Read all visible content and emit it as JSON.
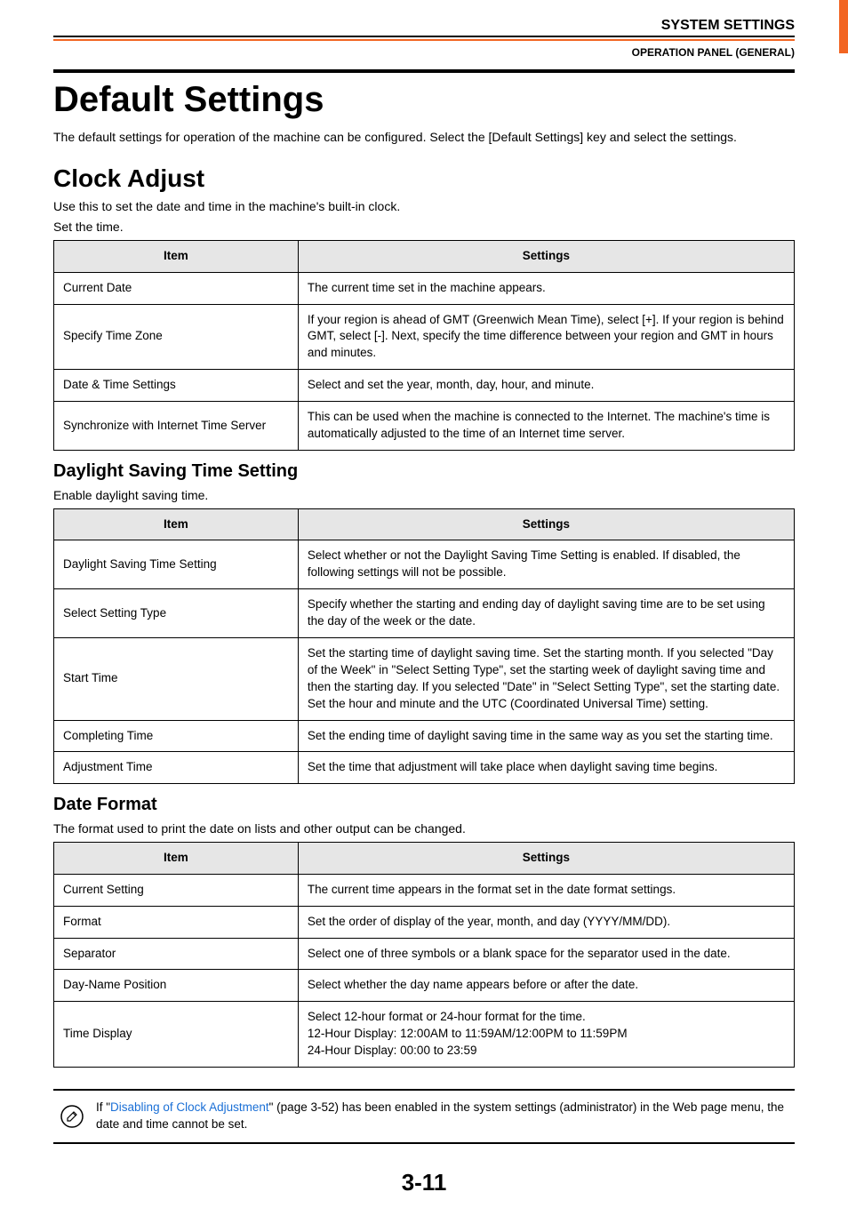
{
  "header": {
    "chapter": "SYSTEM SETTINGS",
    "subsection": "OPERATION PANEL (GENERAL)"
  },
  "title": "Default Settings",
  "intro": "The default settings for operation of the machine can be configured. Select the [Default Settings] key and select the settings.",
  "section1": {
    "heading": "Clock Adjust",
    "desc1": "Use this to set the date and time in the machine's built-in clock.",
    "desc2": "Set the time.",
    "th_item": "Item",
    "th_settings": "Settings",
    "rows": [
      {
        "item": "Current Date",
        "settings": "The current time set in the machine appears."
      },
      {
        "item": "Specify Time Zone",
        "settings": "If your region is ahead of GMT (Greenwich Mean Time), select [+]. If your region is behind GMT, select [-]. Next, specify the time difference between your region and GMT in hours and minutes."
      },
      {
        "item": "Date & Time Settings",
        "settings": "Select and set the year, month, day, hour, and minute."
      },
      {
        "item": "Synchronize with Internet Time Server",
        "settings": "This can be used when the machine is connected to the Internet. The machine's time is automatically adjusted to the time of an Internet time server."
      }
    ]
  },
  "section2": {
    "heading": "Daylight Saving Time Setting",
    "desc": "Enable daylight saving time.",
    "th_item": "Item",
    "th_settings": "Settings",
    "rows": [
      {
        "item": "Daylight Saving Time Setting",
        "settings": "Select whether or not the Daylight Saving Time Setting is enabled. If disabled, the following settings will not be possible."
      },
      {
        "item": "Select Setting Type",
        "settings": "Specify whether the starting and ending day of daylight saving time are to be set using the day of the week or the date."
      },
      {
        "item": "Start Time",
        "settings": "Set the starting time of daylight saving time. Set the starting month. If you selected \"Day of the Week\" in \"Select Setting Type\", set the starting week of daylight saving time and then the starting day. If you selected \"Date\" in \"Select Setting Type\", set the starting date. Set the hour and minute and the UTC (Coordinated Universal Time) setting."
      },
      {
        "item": "Completing Time",
        "settings": "Set the ending time of daylight saving time in the same way as you set the starting time."
      },
      {
        "item": "Adjustment Time",
        "settings": "Set the time that adjustment will take place when daylight saving time begins."
      }
    ]
  },
  "section3": {
    "heading": "Date Format",
    "desc": "The format used to print the date on lists and other output can be changed.",
    "th_item": "Item",
    "th_settings": "Settings",
    "rows": [
      {
        "item": "Current Setting",
        "settings": "The current time appears in the format set in the date format settings."
      },
      {
        "item": "Format",
        "settings": "Set the order of display of the year, month, and day (YYYY/MM/DD)."
      },
      {
        "item": "Separator",
        "settings": "Select one of three symbols or a blank space for the separator used in the date."
      },
      {
        "item": "Day-Name Position",
        "settings": "Select whether the day name appears before or after the date."
      },
      {
        "item": "Time Display",
        "settings": "Select 12-hour format or 24-hour format for the time.\n12-Hour Display: 12:00AM to 11:59AM/12:00PM to 11:59PM\n24-Hour Display: 00:00 to 23:59"
      }
    ]
  },
  "note": {
    "pre": "If \"",
    "link": "Disabling of Clock Adjustment",
    "post": "\" (page 3-52) has been enabled in the system settings (administrator) in the Web page menu, the date and time cannot be set."
  },
  "pagenum": "3-11"
}
